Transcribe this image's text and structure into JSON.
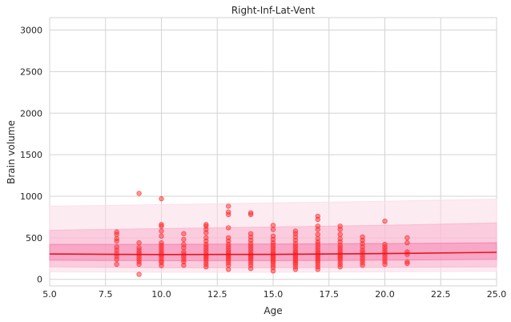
{
  "chart_data": {
    "type": "scatter",
    "title": "Right-Inf-Lat-Vent",
    "xlabel": "Age",
    "ylabel": "Brain volume",
    "xlim": [
      5.0,
      25.0
    ],
    "ylim": [
      -80,
      3150
    ],
    "grid": true,
    "x_ticks": [
      5.0,
      7.5,
      10.0,
      12.5,
      15.0,
      17.5,
      20.0,
      22.5,
      25.0
    ],
    "x_tick_labels": [
      "5.0",
      "7.5",
      "10.0",
      "12.5",
      "15.0",
      "17.5",
      "20.0",
      "22.5",
      "25.0"
    ],
    "y_ticks": [
      0,
      500,
      1000,
      1500,
      2000,
      2500,
      3000
    ],
    "y_tick_labels": [
      "0",
      "500",
      "1000",
      "1500",
      "2000",
      "2500",
      "3000"
    ],
    "colors": {
      "points": "#ff2d2d",
      "median_line": "#e8141e",
      "band_inner": "#f47aa8",
      "band_mid": "#f9b3cd",
      "band_outer": "#fcdbe8",
      "grid": "#d3d3d3"
    },
    "centile_bands": {
      "age": [
        5,
        10,
        15,
        20,
        25
      ],
      "p01": [
        90,
        85,
        85,
        90,
        95
      ],
      "p05": [
        150,
        140,
        140,
        145,
        150
      ],
      "p25": [
        230,
        225,
        225,
        230,
        240
      ],
      "p50": [
        305,
        298,
        300,
        310,
        325
      ],
      "p75": [
        420,
        420,
        425,
        430,
        440
      ],
      "p95": [
        590,
        610,
        630,
        650,
        680
      ],
      "p99": [
        750,
        780,
        800,
        830,
        870
      ],
      "p995": [
        880,
        900,
        920,
        940,
        965
      ]
    },
    "points": [
      {
        "x": 8,
        "y": 570
      },
      {
        "x": 8,
        "y": 540
      },
      {
        "x": 8,
        "y": 490
      },
      {
        "x": 8,
        "y": 460
      },
      {
        "x": 8,
        "y": 390
      },
      {
        "x": 8,
        "y": 350
      },
      {
        "x": 8,
        "y": 310
      },
      {
        "x": 8,
        "y": 280
      },
      {
        "x": 8,
        "y": 240
      },
      {
        "x": 8,
        "y": 180
      },
      {
        "x": 9,
        "y": 1035
      },
      {
        "x": 9,
        "y": 440
      },
      {
        "x": 9,
        "y": 380
      },
      {
        "x": 9,
        "y": 350
      },
      {
        "x": 9,
        "y": 320
      },
      {
        "x": 9,
        "y": 300
      },
      {
        "x": 9,
        "y": 270
      },
      {
        "x": 9,
        "y": 240
      },
      {
        "x": 9,
        "y": 210
      },
      {
        "x": 9,
        "y": 180
      },
      {
        "x": 9,
        "y": 60
      },
      {
        "x": 10,
        "y": 970
      },
      {
        "x": 10,
        "y": 660
      },
      {
        "x": 10,
        "y": 640
      },
      {
        "x": 10,
        "y": 580
      },
      {
        "x": 10,
        "y": 520
      },
      {
        "x": 10,
        "y": 440
      },
      {
        "x": 10,
        "y": 410
      },
      {
        "x": 10,
        "y": 380
      },
      {
        "x": 10,
        "y": 350
      },
      {
        "x": 10,
        "y": 320
      },
      {
        "x": 10,
        "y": 300
      },
      {
        "x": 10,
        "y": 280
      },
      {
        "x": 10,
        "y": 250
      },
      {
        "x": 10,
        "y": 220
      },
      {
        "x": 10,
        "y": 200
      },
      {
        "x": 10,
        "y": 165
      },
      {
        "x": 11,
        "y": 550
      },
      {
        "x": 11,
        "y": 480
      },
      {
        "x": 11,
        "y": 420
      },
      {
        "x": 11,
        "y": 380
      },
      {
        "x": 11,
        "y": 330
      },
      {
        "x": 11,
        "y": 300
      },
      {
        "x": 11,
        "y": 270
      },
      {
        "x": 11,
        "y": 240
      },
      {
        "x": 11,
        "y": 210
      },
      {
        "x": 11,
        "y": 170
      },
      {
        "x": 12,
        "y": 660
      },
      {
        "x": 12,
        "y": 640
      },
      {
        "x": 12,
        "y": 600
      },
      {
        "x": 12,
        "y": 560
      },
      {
        "x": 12,
        "y": 500
      },
      {
        "x": 12,
        "y": 460
      },
      {
        "x": 12,
        "y": 420
      },
      {
        "x": 12,
        "y": 390
      },
      {
        "x": 12,
        "y": 360
      },
      {
        "x": 12,
        "y": 330
      },
      {
        "x": 12,
        "y": 300
      },
      {
        "x": 12,
        "y": 280
      },
      {
        "x": 12,
        "y": 260
      },
      {
        "x": 12,
        "y": 240
      },
      {
        "x": 12,
        "y": 210
      },
      {
        "x": 12,
        "y": 180
      },
      {
        "x": 12,
        "y": 150
      },
      {
        "x": 13,
        "y": 880
      },
      {
        "x": 13,
        "y": 810
      },
      {
        "x": 13,
        "y": 780
      },
      {
        "x": 13,
        "y": 620
      },
      {
        "x": 13,
        "y": 500
      },
      {
        "x": 13,
        "y": 460
      },
      {
        "x": 13,
        "y": 420
      },
      {
        "x": 13,
        "y": 390
      },
      {
        "x": 13,
        "y": 360
      },
      {
        "x": 13,
        "y": 330
      },
      {
        "x": 13,
        "y": 310
      },
      {
        "x": 13,
        "y": 290
      },
      {
        "x": 13,
        "y": 270
      },
      {
        "x": 13,
        "y": 250
      },
      {
        "x": 13,
        "y": 230
      },
      {
        "x": 13,
        "y": 200
      },
      {
        "x": 13,
        "y": 170
      },
      {
        "x": 13,
        "y": 120
      },
      {
        "x": 14,
        "y": 800
      },
      {
        "x": 14,
        "y": 780
      },
      {
        "x": 14,
        "y": 550
      },
      {
        "x": 14,
        "y": 510
      },
      {
        "x": 14,
        "y": 470
      },
      {
        "x": 14,
        "y": 430
      },
      {
        "x": 14,
        "y": 400
      },
      {
        "x": 14,
        "y": 370
      },
      {
        "x": 14,
        "y": 340
      },
      {
        "x": 14,
        "y": 310
      },
      {
        "x": 14,
        "y": 290
      },
      {
        "x": 14,
        "y": 270
      },
      {
        "x": 14,
        "y": 250
      },
      {
        "x": 14,
        "y": 230
      },
      {
        "x": 14,
        "y": 200
      },
      {
        "x": 14,
        "y": 170
      },
      {
        "x": 14,
        "y": 130
      },
      {
        "x": 15,
        "y": 650
      },
      {
        "x": 15,
        "y": 600
      },
      {
        "x": 15,
        "y": 520
      },
      {
        "x": 15,
        "y": 480
      },
      {
        "x": 15,
        "y": 440
      },
      {
        "x": 15,
        "y": 410
      },
      {
        "x": 15,
        "y": 380
      },
      {
        "x": 15,
        "y": 350
      },
      {
        "x": 15,
        "y": 320
      },
      {
        "x": 15,
        "y": 300
      },
      {
        "x": 15,
        "y": 280
      },
      {
        "x": 15,
        "y": 260
      },
      {
        "x": 15,
        "y": 240
      },
      {
        "x": 15,
        "y": 220
      },
      {
        "x": 15,
        "y": 200
      },
      {
        "x": 15,
        "y": 170
      },
      {
        "x": 15,
        "y": 140
      },
      {
        "x": 15,
        "y": 100
      },
      {
        "x": 16,
        "y": 580
      },
      {
        "x": 16,
        "y": 550
      },
      {
        "x": 16,
        "y": 510
      },
      {
        "x": 16,
        "y": 470
      },
      {
        "x": 16,
        "y": 430
      },
      {
        "x": 16,
        "y": 400
      },
      {
        "x": 16,
        "y": 370
      },
      {
        "x": 16,
        "y": 340
      },
      {
        "x": 16,
        "y": 320
      },
      {
        "x": 16,
        "y": 300
      },
      {
        "x": 16,
        "y": 280
      },
      {
        "x": 16,
        "y": 260
      },
      {
        "x": 16,
        "y": 240
      },
      {
        "x": 16,
        "y": 220
      },
      {
        "x": 16,
        "y": 200
      },
      {
        "x": 16,
        "y": 180
      },
      {
        "x": 16,
        "y": 150
      },
      {
        "x": 16,
        "y": 120
      },
      {
        "x": 17,
        "y": 760
      },
      {
        "x": 17,
        "y": 720
      },
      {
        "x": 17,
        "y": 640
      },
      {
        "x": 17,
        "y": 600
      },
      {
        "x": 17,
        "y": 540
      },
      {
        "x": 17,
        "y": 490
      },
      {
        "x": 17,
        "y": 450
      },
      {
        "x": 17,
        "y": 420
      },
      {
        "x": 17,
        "y": 390
      },
      {
        "x": 17,
        "y": 360
      },
      {
        "x": 17,
        "y": 330
      },
      {
        "x": 17,
        "y": 310
      },
      {
        "x": 17,
        "y": 290
      },
      {
        "x": 17,
        "y": 270
      },
      {
        "x": 17,
        "y": 250
      },
      {
        "x": 17,
        "y": 230
      },
      {
        "x": 17,
        "y": 210
      },
      {
        "x": 17,
        "y": 180
      },
      {
        "x": 17,
        "y": 150
      },
      {
        "x": 17,
        "y": 120
      },
      {
        "x": 18,
        "y": 640
      },
      {
        "x": 18,
        "y": 600
      },
      {
        "x": 18,
        "y": 540
      },
      {
        "x": 18,
        "y": 490
      },
      {
        "x": 18,
        "y": 450
      },
      {
        "x": 18,
        "y": 410
      },
      {
        "x": 18,
        "y": 380
      },
      {
        "x": 18,
        "y": 350
      },
      {
        "x": 18,
        "y": 320
      },
      {
        "x": 18,
        "y": 300
      },
      {
        "x": 18,
        "y": 280
      },
      {
        "x": 18,
        "y": 260
      },
      {
        "x": 18,
        "y": 240
      },
      {
        "x": 18,
        "y": 210
      },
      {
        "x": 18,
        "y": 180
      },
      {
        "x": 18,
        "y": 150
      },
      {
        "x": 19,
        "y": 510
      },
      {
        "x": 19,
        "y": 470
      },
      {
        "x": 19,
        "y": 430
      },
      {
        "x": 19,
        "y": 390
      },
      {
        "x": 19,
        "y": 350
      },
      {
        "x": 19,
        "y": 320
      },
      {
        "x": 19,
        "y": 290
      },
      {
        "x": 19,
        "y": 260
      },
      {
        "x": 19,
        "y": 230
      },
      {
        "x": 19,
        "y": 200
      },
      {
        "x": 19,
        "y": 170
      },
      {
        "x": 20,
        "y": 700
      },
      {
        "x": 20,
        "y": 420
      },
      {
        "x": 20,
        "y": 390
      },
      {
        "x": 20,
        "y": 360
      },
      {
        "x": 20,
        "y": 330
      },
      {
        "x": 20,
        "y": 300
      },
      {
        "x": 20,
        "y": 270
      },
      {
        "x": 20,
        "y": 240
      },
      {
        "x": 20,
        "y": 210
      },
      {
        "x": 20,
        "y": 180
      },
      {
        "x": 21,
        "y": 500
      },
      {
        "x": 21,
        "y": 440
      },
      {
        "x": 21,
        "y": 330
      },
      {
        "x": 21,
        "y": 300
      },
      {
        "x": 21,
        "y": 210
      },
      {
        "x": 21,
        "y": 190
      }
    ]
  }
}
